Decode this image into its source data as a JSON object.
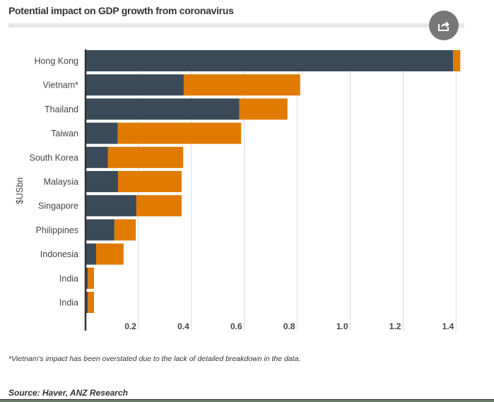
{
  "header": {
    "title": "Potential impact on GDP growth from coronavirus",
    "share_icon": "share-icon"
  },
  "chart_data": {
    "type": "bar",
    "orientation": "horizontal",
    "stacked": true,
    "title": "Potential impact on GDP growth from coronavirus",
    "xlabel": "",
    "ylabel": "$USbn",
    "categories": [
      "Hong Kong",
      "Vietnam*",
      "Thailand",
      "Taiwan",
      "South Korea",
      "Malaysia",
      "Singapore",
      "Philippines",
      "Indonesia",
      "India",
      "India"
    ],
    "series": [
      {
        "color": "#3a4a58",
        "values": [
          1.389,
          0.371,
          0.581,
          0.122,
          0.085,
          0.123,
          0.192,
          0.109,
          0.04,
          0.008,
          0.008
        ]
      },
      {
        "color": "#e07b00",
        "values": [
          0.027,
          0.44,
          0.182,
          0.466,
          0.284,
          0.24,
          0.171,
          0.081,
          0.104,
          0.024,
          0.024
        ]
      }
    ],
    "xlim": [
      0,
      1.45
    ],
    "xticks": [
      "0.2",
      "0.4",
      "0.6",
      "0.8",
      "1.0",
      "1.2",
      "1.4"
    ],
    "xtick_values": [
      0.2,
      0.4,
      0.6,
      0.8,
      1.0,
      1.2,
      1.4
    ],
    "grid": true,
    "legend": "none"
  },
  "footer": {
    "note": "*Vietnam's impact has been overstated due to the lack of detailed breakdown in the data.",
    "source": "Source: Haver, ANZ Research"
  }
}
